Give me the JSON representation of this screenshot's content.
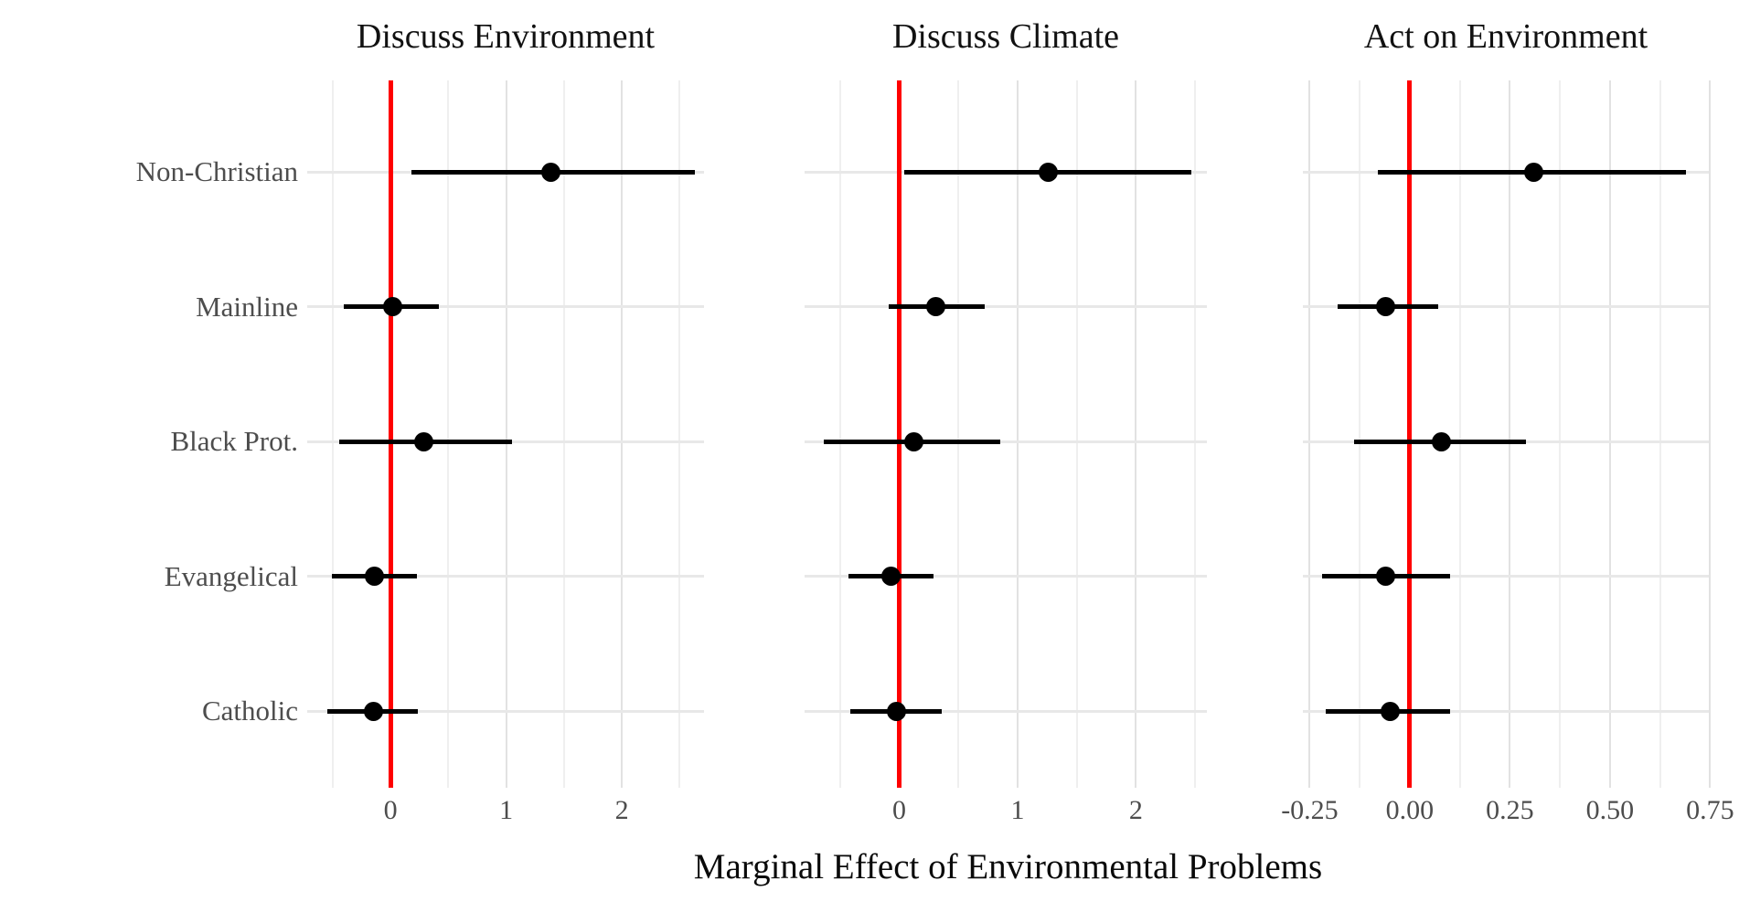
{
  "figure": {
    "kind": "coefficient-forest-plot"
  },
  "chart_data": {
    "type": "scatter",
    "subtype": "pointrange-forest",
    "xlabel": "Marginal Effect of Environmental Problems",
    "categories": [
      "Non-Christian",
      "Mainline",
      "Black Prot.",
      "Evangelical",
      "Catholic"
    ],
    "legend": "none",
    "grid": "on",
    "ref_line_value": 0,
    "colors": {
      "ref_line": "#ff0000",
      "point": "#000000",
      "interval": "#000000",
      "axis_text": "#4d4d4d",
      "title_text": "#111111",
      "grid_major": "#e2e2e2",
      "grid_minor": "#efefef",
      "grid_row": "#e8e8e8"
    },
    "panels": [
      {
        "title": "Discuss Environment",
        "xlim": [
          -0.72,
          2.71
        ],
        "xticks": [
          0,
          1,
          2
        ],
        "xtick_labels": [
          "0",
          "1",
          "2"
        ],
        "minor_ticks": [
          -0.5,
          0.5,
          1.5,
          2.5
        ],
        "estimates": [
          1.39,
          0.02,
          0.29,
          -0.14,
          -0.15
        ],
        "ci_low": [
          0.18,
          -0.4,
          -0.44,
          -0.51,
          -0.55
        ],
        "ci_high": [
          2.63,
          0.42,
          1.05,
          0.23,
          0.24
        ]
      },
      {
        "title": "Discuss Climate",
        "xlim": [
          -0.8,
          2.6
        ],
        "xticks": [
          0,
          1,
          2
        ],
        "xtick_labels": [
          "0",
          "1",
          "2"
        ],
        "minor_ticks": [
          -0.5,
          0.5,
          1.5,
          2.5
        ],
        "estimates": [
          1.26,
          0.31,
          0.12,
          -0.07,
          -0.02
        ],
        "ci_low": [
          0.04,
          -0.09,
          -0.64,
          -0.43,
          -0.41
        ],
        "ci_high": [
          2.47,
          0.72,
          0.85,
          0.29,
          0.36
        ]
      },
      {
        "title": "Act on Environment",
        "xlim": [
          -0.267,
          0.747
        ],
        "xticks": [
          -0.25,
          0.0,
          0.25,
          0.5,
          0.75
        ],
        "xtick_labels": [
          "-0.25",
          "0.00",
          "0.25",
          "0.50",
          "0.75"
        ],
        "minor_ticks": [
          -0.125,
          0.125,
          0.375,
          0.625
        ],
        "estimates": [
          0.31,
          -0.06,
          0.08,
          -0.06,
          -0.05
        ],
        "ci_low": [
          -0.08,
          -0.18,
          -0.14,
          -0.22,
          -0.21
        ],
        "ci_high": [
          0.69,
          0.07,
          0.29,
          0.1,
          0.1
        ]
      }
    ]
  }
}
